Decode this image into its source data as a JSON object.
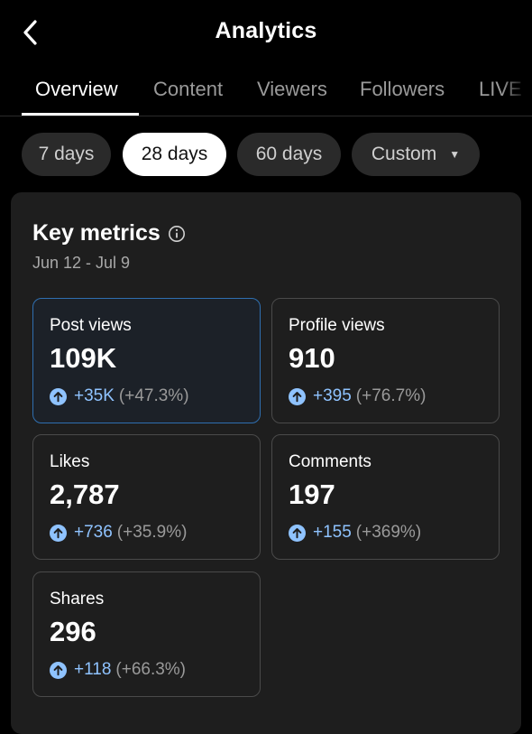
{
  "header": {
    "title": "Analytics",
    "back_icon": "chevron-left-icon"
  },
  "tabs": [
    {
      "label": "Overview",
      "active": true
    },
    {
      "label": "Content",
      "active": false
    },
    {
      "label": "Viewers",
      "active": false
    },
    {
      "label": "Followers",
      "active": false
    },
    {
      "label": "LIVE",
      "active": false
    }
  ],
  "ranges": [
    {
      "label": "7 days",
      "selected": false
    },
    {
      "label": "28 days",
      "selected": true
    },
    {
      "label": "60 days",
      "selected": false
    },
    {
      "label": "Custom",
      "selected": false
    }
  ],
  "key_metrics": {
    "title": "Key metrics",
    "date_range": "Jun 12 - Jul 9",
    "cards": [
      {
        "label": "Post views",
        "value": "109K",
        "delta": "+35K",
        "pct": "(+47.3%)",
        "active": true
      },
      {
        "label": "Profile views",
        "value": "910",
        "delta": "+395",
        "pct": "(+76.7%)",
        "active": false
      },
      {
        "label": "Likes",
        "value": "2,787",
        "delta": "+736",
        "pct": "(+35.9%)",
        "active": false
      },
      {
        "label": "Comments",
        "value": "197",
        "delta": "+155",
        "pct": "(+369%)",
        "active": false
      },
      {
        "label": "Shares",
        "value": "296",
        "delta": "+118",
        "pct": "(+66.3%)",
        "active": false
      }
    ]
  },
  "colors": {
    "background": "#000000",
    "panel": "#1e1e1e",
    "accent_blue": "#8fc3ff",
    "active_border": "#2f6fb0"
  }
}
